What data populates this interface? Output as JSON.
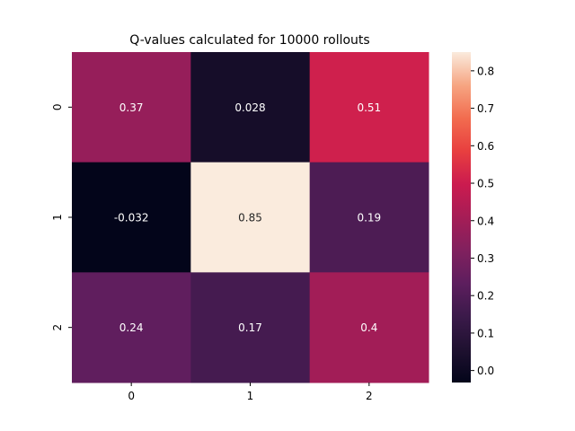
{
  "chart_data": {
    "type": "heatmap",
    "title": "Q-values calculated for 10000 rollouts",
    "xlabel": "",
    "ylabel": "",
    "x_categories": [
      "0",
      "1",
      "2"
    ],
    "y_categories": [
      "0",
      "1",
      "2"
    ],
    "values": [
      [
        0.37,
        0.028,
        0.51
      ],
      [
        -0.032,
        0.85,
        0.19
      ],
      [
        0.24,
        0.17,
        0.4
      ]
    ],
    "annotations": [
      [
        "0.37",
        "0.028",
        "0.51"
      ],
      [
        "-0.032",
        "0.85",
        "0.19"
      ],
      [
        "0.24",
        "0.17",
        "0.4"
      ]
    ],
    "colormap": "rocket",
    "colorbar": {
      "range": [
        -0.032,
        0.85
      ],
      "ticks": [
        "0.0",
        "0.1",
        "0.2",
        "0.3",
        "0.4",
        "0.5",
        "0.6",
        "0.7",
        "0.8"
      ]
    },
    "grid": false,
    "legend": "none"
  }
}
